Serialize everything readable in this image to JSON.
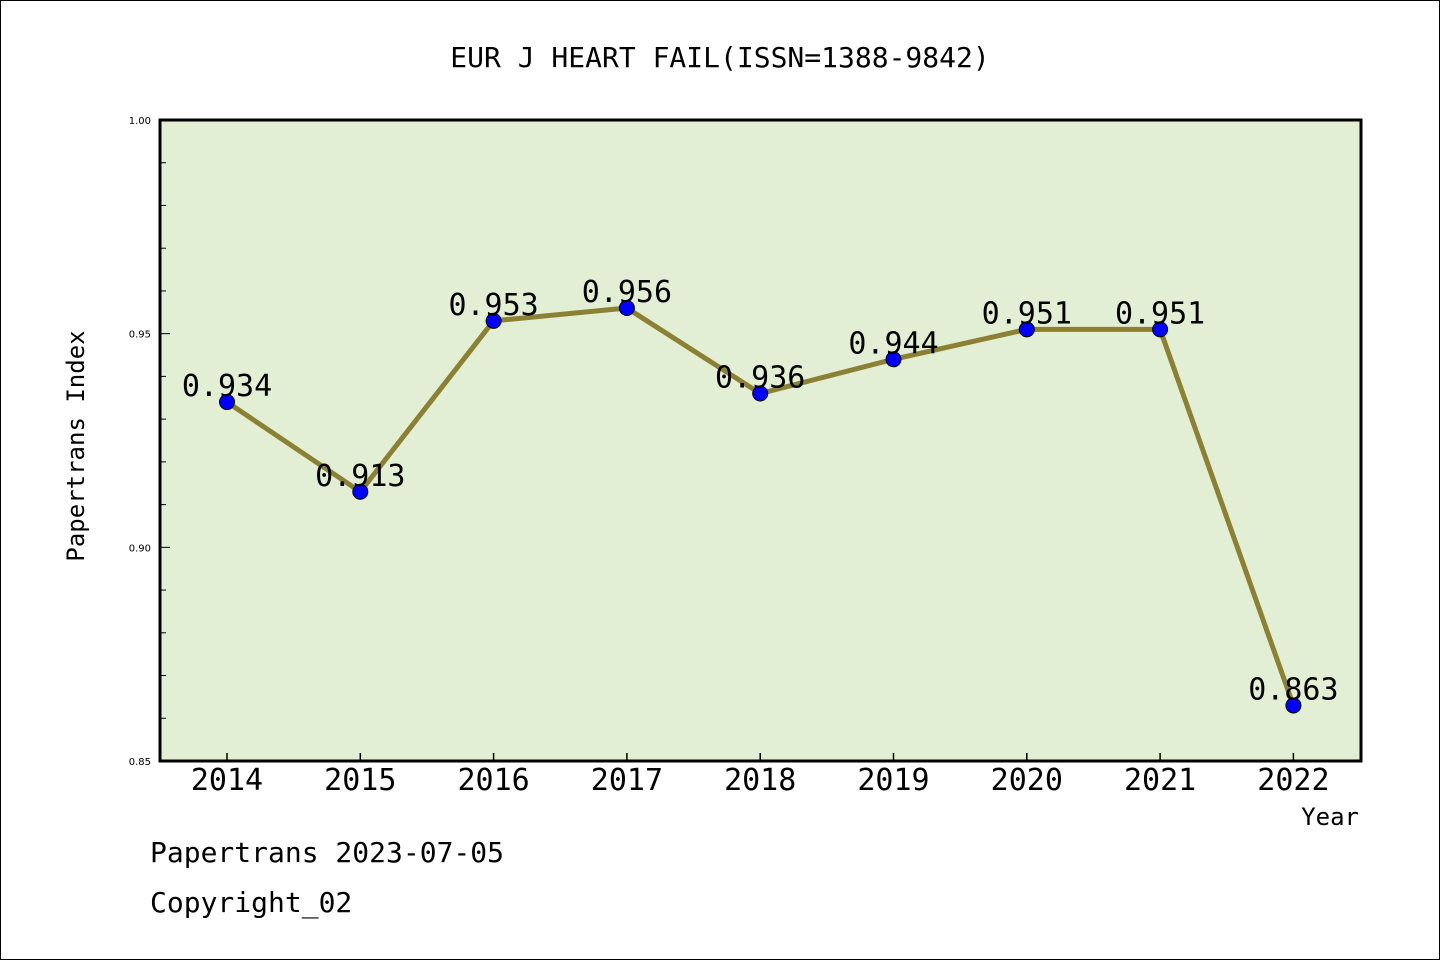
{
  "chart_data": {
    "type": "line",
    "title": "EUR J HEART FAIL(ISSN=1388-9842)",
    "xlabel": "Year",
    "ylabel": "Papertrans Index",
    "categories": [
      "2014",
      "2015",
      "2016",
      "2017",
      "2018",
      "2019",
      "2020",
      "2021",
      "2022"
    ],
    "values": [
      0.934,
      0.913,
      0.953,
      0.956,
      0.936,
      0.944,
      0.951,
      0.951,
      0.863
    ],
    "data_labels": [
      "0.934",
      "0.913",
      "0.953",
      "0.956",
      "0.936",
      "0.944",
      "0.951",
      "0.951",
      "0.863"
    ],
    "ylim": [
      0.85,
      1.0
    ],
    "yticks": [
      "0.85",
      "0.90",
      "0.95",
      "1.00"
    ],
    "grid": false,
    "colors": {
      "plot_background": "#e2efd4",
      "line": "#8b8033",
      "marker": "#0000ff"
    }
  },
  "footer": {
    "date_text": "Papertrans 2023-07-05",
    "copyright_text": "Copyright_02"
  }
}
